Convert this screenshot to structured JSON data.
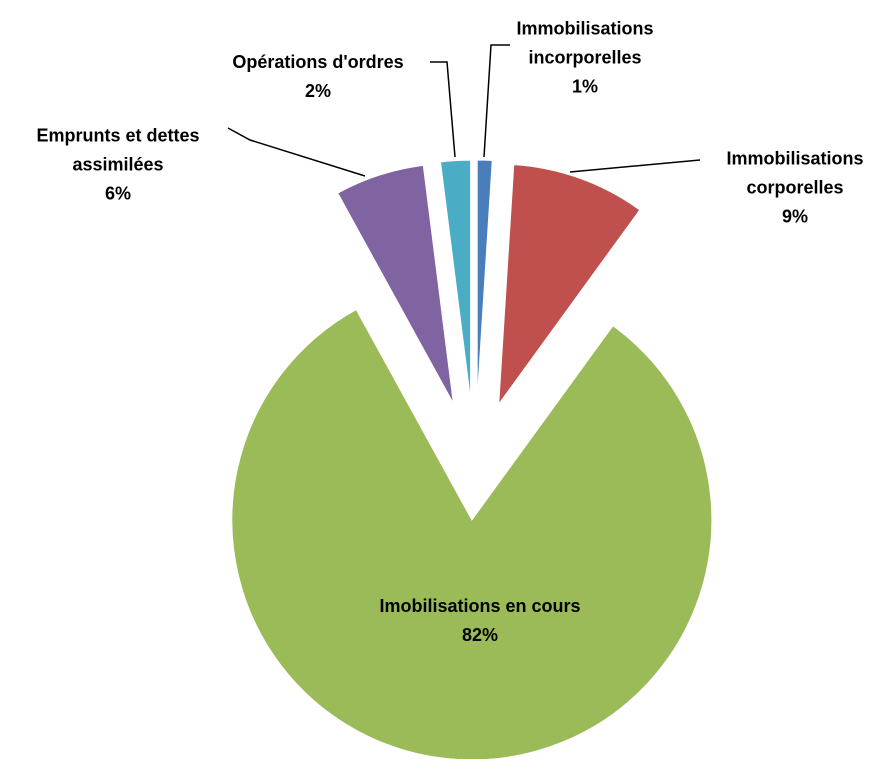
{
  "chart_data": {
    "type": "pie",
    "categories": [
      "Immobilisations incorporelles",
      "Immobilisations corporelles",
      "Imobilisations en cours",
      "Emprunts et dettes assimilées",
      "Opérations d'ordres"
    ],
    "values": [
      1,
      9,
      82,
      6,
      2
    ],
    "value_labels": [
      "1%",
      "9%",
      "82%",
      "6%",
      "2%"
    ],
    "colors": [
      "#4a7ebb",
      "#c0504d",
      "#9bbb59",
      "#8064a2",
      "#4bacc6"
    ],
    "exploded": true
  }
}
